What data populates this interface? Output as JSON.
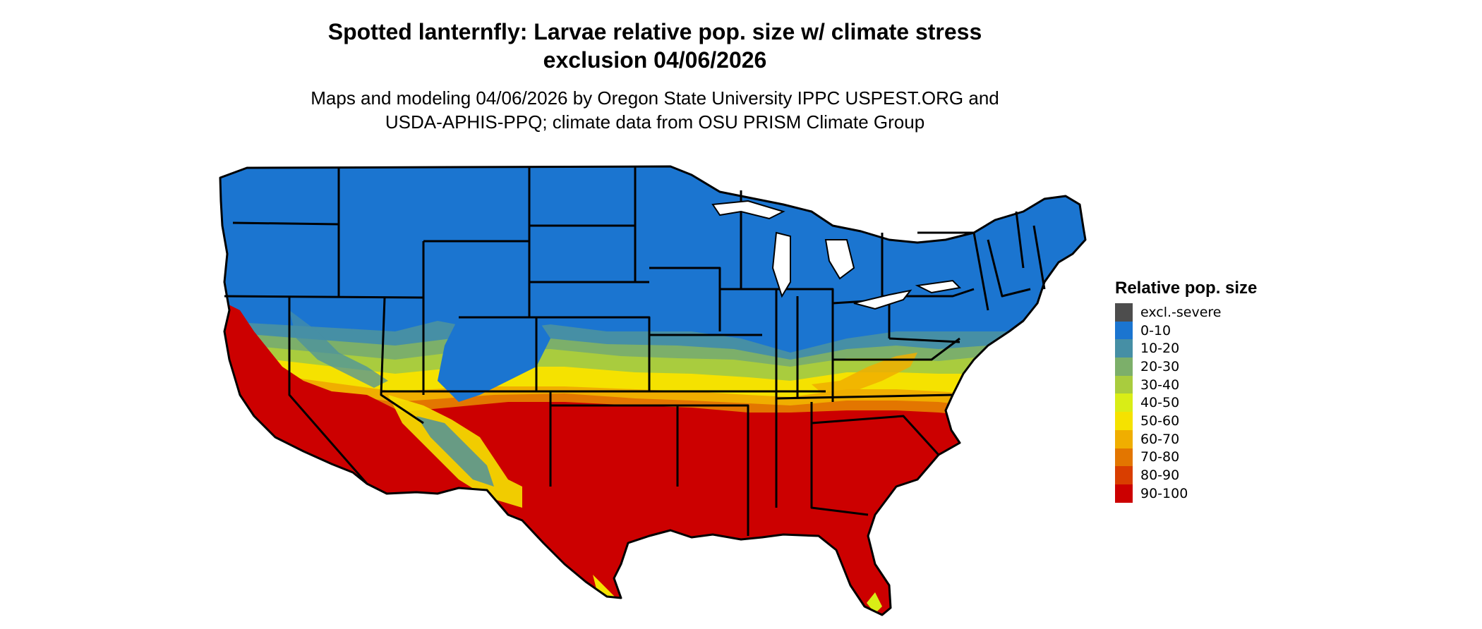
{
  "header": {
    "title_line1": "Spotted lanternfly: Larvae relative pop. size w/ climate stress",
    "title_line2": "exclusion 04/06/2026",
    "subtitle_line1": "Maps and modeling 04/06/2026 by Oregon State University IPPC USPEST.ORG and",
    "subtitle_line2": "USDA-APHIS-PPQ; climate data from OSU PRISM Climate Group"
  },
  "legend": {
    "title": "Relative pop. size",
    "items": [
      {
        "label": "excl.-severe",
        "color": "#4d4d4d"
      },
      {
        "label": "0-10",
        "color": "#1b75d0"
      },
      {
        "label": "10-20",
        "color": "#468fa5"
      },
      {
        "label": "20-30",
        "color": "#7caf6a"
      },
      {
        "label": "30-40",
        "color": "#a9cc3e"
      },
      {
        "label": "40-50",
        "color": "#d9ed16"
      },
      {
        "label": "50-60",
        "color": "#f5e200"
      },
      {
        "label": "60-70",
        "color": "#f0ae00"
      },
      {
        "label": "70-80",
        "color": "#e37600"
      },
      {
        "label": "80-90",
        "color": "#d93e00"
      },
      {
        "label": "90-100",
        "color": "#cc0000"
      }
    ]
  }
}
